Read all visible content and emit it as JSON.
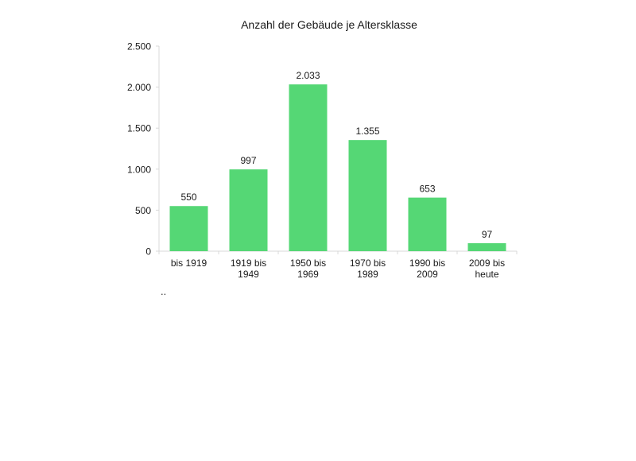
{
  "chart_data": {
    "type": "bar",
    "title": "Anzahl der Gebäude je Altersklasse",
    "categories": [
      [
        "bis 1919"
      ],
      [
        "1919 bis",
        "1949"
      ],
      [
        "1950 bis",
        "1969"
      ],
      [
        "1970 bis",
        "1989"
      ],
      [
        "1990 bis",
        "2009"
      ],
      [
        "2009 bis",
        "heute"
      ]
    ],
    "values": [
      550,
      997,
      2033,
      1355,
      653,
      97
    ],
    "value_labels": [
      "550",
      "997",
      "2.033",
      "1.355",
      "653",
      "97"
    ],
    "yticks": [
      {
        "value": 0,
        "label": "0"
      },
      {
        "value": 500,
        "label": "500"
      },
      {
        "value": 1000,
        "label": "1.000"
      },
      {
        "value": 1500,
        "label": "1.500"
      },
      {
        "value": 2000,
        "label": "2.000"
      },
      {
        "value": 2500,
        "label": "2.500"
      }
    ],
    "ylim": [
      0,
      2500
    ],
    "xlabel": "",
    "ylabel": "",
    "grid": false,
    "bar_color": "#55d775",
    "axis_color": "#d9d9d9",
    "footnote": ".."
  }
}
